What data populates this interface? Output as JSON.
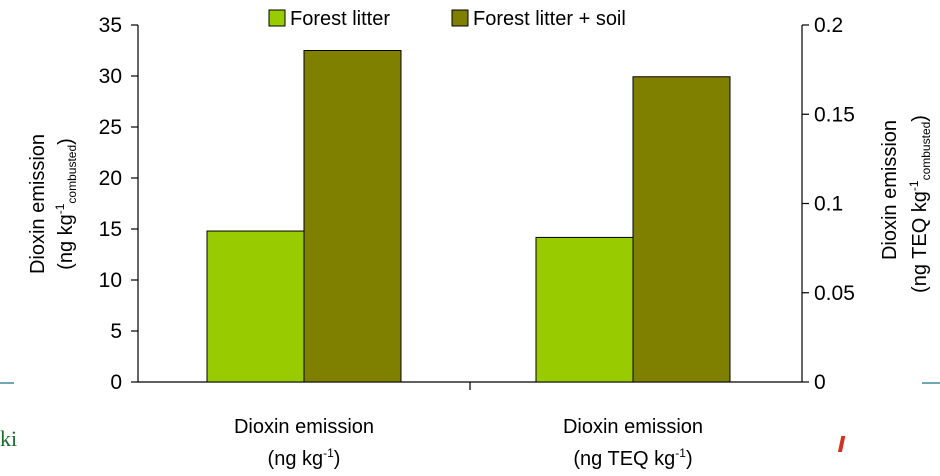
{
  "chart_data": {
    "type": "bar",
    "categories": [
      {
        "line1": "Dioxin emission",
        "line2_main": "(ng kg",
        "line2_sup": "-1",
        "line2_end": ")",
        "axis": "left"
      },
      {
        "line1": "Dioxin emission",
        "line2_main": "(ng TEQ kg",
        "line2_sup": "-1",
        "line2_end": ")",
        "axis": "right"
      }
    ],
    "series": [
      {
        "name": "Forest litter",
        "color": "#99cc00",
        "values": [
          14.8,
          0.081
        ]
      },
      {
        "name": "Forest litter + soil",
        "color": "#808000",
        "values": [
          32.5,
          0.171
        ]
      }
    ],
    "left_axis": {
      "ylim": [
        0,
        35
      ],
      "ticks": [
        "0",
        "5",
        "10",
        "15",
        "20",
        "25",
        "30",
        "35"
      ],
      "title_line1": "Dioxin emission",
      "title_line2_main": "(ng kg",
      "title_line2_sup": "-1",
      "title_line2_sub": "combusted",
      "title_line2_end": ")"
    },
    "right_axis": {
      "ylim": [
        0,
        0.2
      ],
      "ticks": [
        "0",
        "0.05",
        "0.1",
        "0.15",
        "0.2"
      ],
      "title_line1": "Dioxin emission",
      "title_line2_main": "(ng TEQ kg",
      "title_line2_sup": "-1",
      "title_line2_sub": "combusted",
      "title_line2_end": ")"
    },
    "legend_position": "top",
    "grid": false
  },
  "page_fragments": {
    "left_edge_text": "ki"
  }
}
